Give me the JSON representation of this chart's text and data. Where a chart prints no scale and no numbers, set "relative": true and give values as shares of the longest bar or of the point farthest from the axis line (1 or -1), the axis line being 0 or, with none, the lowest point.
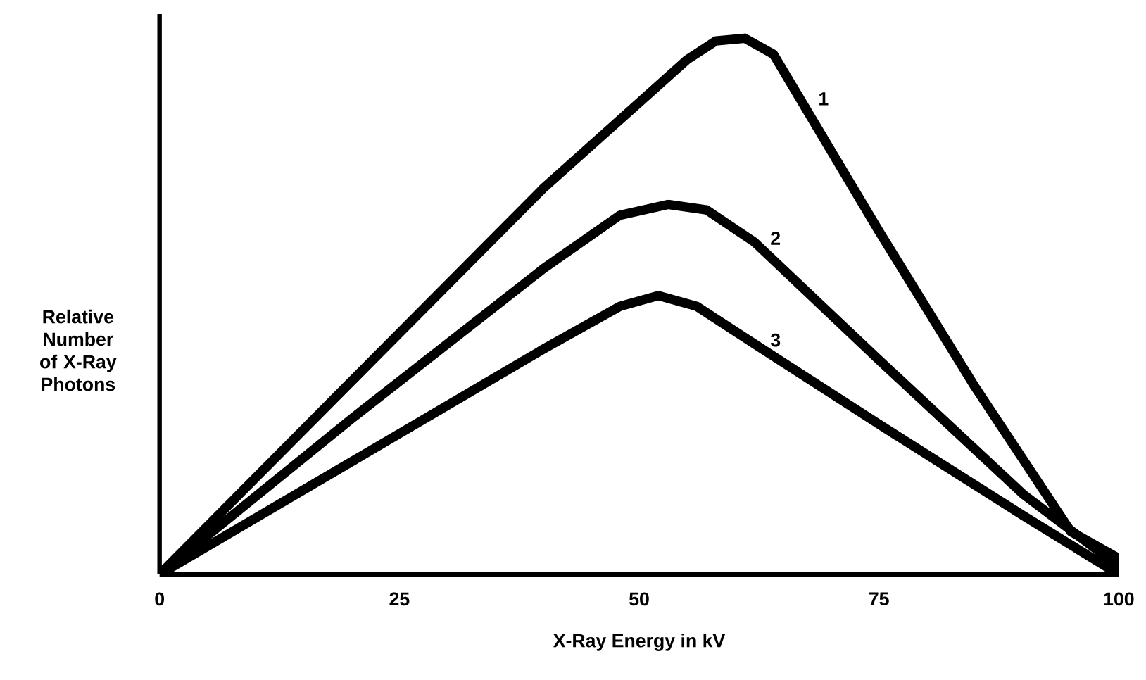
{
  "chart_data": {
    "type": "line",
    "relative": true,
    "xlabel": "X-Ray Energy in kV",
    "ylabel": "Relative Number of X-Ray Photons",
    "xlim": [
      0,
      100
    ],
    "xticks": [
      0,
      25,
      50,
      75,
      100
    ],
    "marker": "none",
    "line_style": "solid",
    "series": [
      {
        "name": "1",
        "color": "#000000",
        "x": [
          0,
          20,
          40,
          50,
          55,
          58,
          61,
          64,
          67,
          75,
          85,
          95,
          100
        ],
        "values": [
          0,
          0.36,
          0.72,
          0.88,
          0.96,
          0.995,
          1,
          0.97,
          0.88,
          0.64,
          0.35,
          0.08,
          0.03
        ]
      },
      {
        "name": "2",
        "color": "#000000",
        "x": [
          0,
          20,
          40,
          48,
          53,
          57,
          62,
          75,
          90,
          100
        ],
        "values": [
          0,
          0.29,
          0.57,
          0.67,
          0.69,
          0.68,
          0.62,
          0.4,
          0.15,
          0.015
        ]
      },
      {
        "name": "3",
        "color": "#000000",
        "x": [
          0,
          20,
          40,
          48,
          52,
          56,
          62,
          75,
          90,
          100
        ],
        "values": [
          0,
          0.21,
          0.42,
          0.5,
          0.52,
          0.5,
          0.43,
          0.28,
          0.11,
          0
        ]
      }
    ]
  }
}
